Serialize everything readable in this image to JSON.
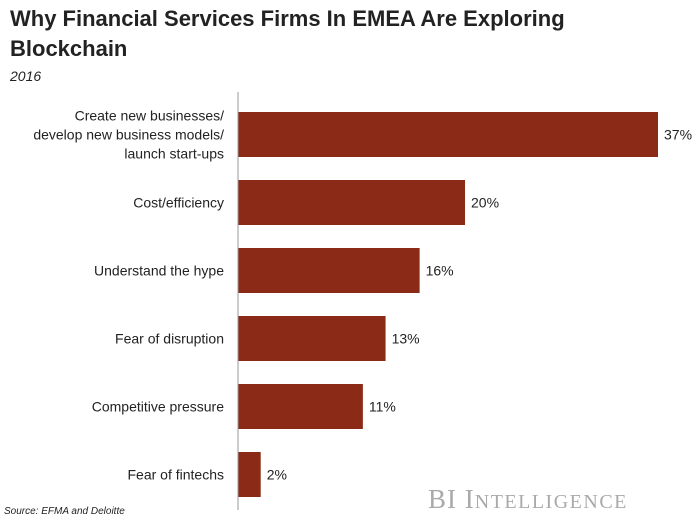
{
  "title": "Why Financial Services Firms In EMEA Are Exploring Blockchain",
  "subtitle": "2016",
  "source": "Source: EFMA and Deloitte",
  "brand": {
    "first": "BI",
    "second_initial": "I",
    "second_rest": "NTELLIGENCE"
  },
  "colors": {
    "bar": "#8b2a16",
    "axis": "#999999",
    "text": "#222222"
  },
  "chart_data": {
    "type": "bar",
    "orientation": "horizontal",
    "categories": [
      [
        "Create new businesses/",
        "develop new business models/",
        "launch start-ups"
      ],
      [
        "Cost/efficiency"
      ],
      [
        "Understand the hype"
      ],
      [
        "Fear of disruption"
      ],
      [
        "Competitive pressure"
      ],
      [
        "Fear of fintechs"
      ]
    ],
    "values": [
      37,
      20,
      16,
      13,
      11,
      2
    ],
    "value_labels": [
      "37%",
      "20%",
      "16%",
      "13%",
      "11%",
      "2%"
    ],
    "xlim": [
      0,
      37
    ],
    "grid": false
  }
}
